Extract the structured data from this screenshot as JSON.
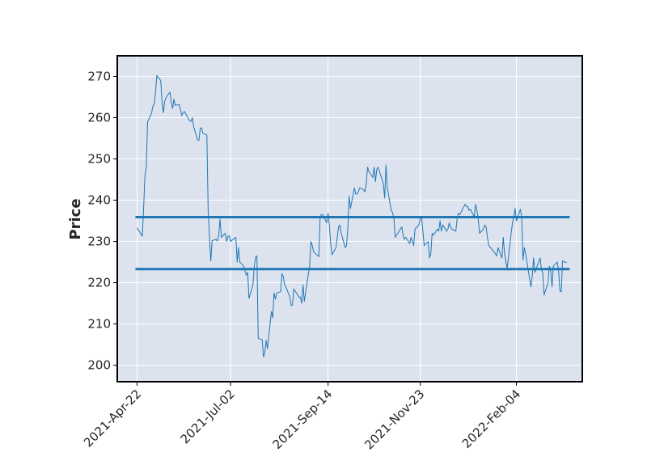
{
  "chart_data": {
    "type": "line",
    "title": "",
    "xlabel": "",
    "ylabel": "Price",
    "ylim": [
      196,
      275
    ],
    "y_ticks": [
      200,
      210,
      220,
      230,
      240,
      250,
      260,
      270
    ],
    "x_tick_labels": [
      "2021-Apr-22",
      "2021-Jul-02",
      "2021-Sep-14",
      "2021-Nov-23",
      "2022-Feb-04"
    ],
    "x_tick_dates": [
      "2021-04-22",
      "2021-07-02",
      "2021-09-14",
      "2021-11-23",
      "2022-02-04"
    ],
    "grid": true,
    "legend": "none",
    "colors": {
      "background": "#dde3ee",
      "grid": "#ffffff",
      "line": "#1f77b4",
      "frame": "#000000"
    },
    "horizontal_lines": [
      235.9,
      223.3
    ],
    "series": [
      {
        "points": [
          [
            "2021-04-22",
            233.3
          ],
          [
            "2021-04-23",
            232.8
          ],
          [
            "2021-04-26",
            231.3
          ],
          [
            "2021-04-27",
            238
          ],
          [
            "2021-04-28",
            246
          ],
          [
            "2021-04-29",
            248
          ],
          [
            "2021-04-30",
            259
          ],
          [
            "2021-05-03",
            261
          ],
          [
            "2021-05-04",
            262.8
          ],
          [
            "2021-05-05",
            263.2
          ],
          [
            "2021-05-06",
            266
          ],
          [
            "2021-05-07",
            270.2
          ],
          [
            "2021-05-10",
            269
          ],
          [
            "2021-05-11",
            263.6
          ],
          [
            "2021-05-12",
            261.2
          ],
          [
            "2021-05-13",
            264
          ],
          [
            "2021-05-14",
            264.9
          ],
          [
            "2021-05-17",
            266.2
          ],
          [
            "2021-05-18",
            263.8
          ],
          [
            "2021-05-19",
            262.2
          ],
          [
            "2021-05-20",
            264.5
          ],
          [
            "2021-05-21",
            263
          ],
          [
            "2021-05-24",
            263.2
          ],
          [
            "2021-05-25",
            262
          ],
          [
            "2021-05-26",
            260.5
          ],
          [
            "2021-05-27",
            261.2
          ],
          [
            "2021-05-28",
            261.5
          ],
          [
            "2021-06-01",
            259.2
          ],
          [
            "2021-06-02",
            259.1
          ],
          [
            "2021-06-03",
            260
          ],
          [
            "2021-06-04",
            257.8
          ],
          [
            "2021-06-07",
            254.6
          ],
          [
            "2021-06-08",
            254.5
          ],
          [
            "2021-06-09",
            257.5
          ],
          [
            "2021-06-10",
            257.5
          ],
          [
            "2021-06-11",
            256.2
          ],
          [
            "2021-06-14",
            255.8
          ],
          [
            "2021-06-15",
            237.5
          ],
          [
            "2021-06-16",
            231
          ],
          [
            "2021-06-17",
            225.3
          ],
          [
            "2021-06-18",
            230.2
          ],
          [
            "2021-06-21",
            230.5
          ],
          [
            "2021-06-22",
            230.1
          ],
          [
            "2021-06-23",
            231.5
          ],
          [
            "2021-06-24",
            235.4
          ],
          [
            "2021-06-25",
            231
          ],
          [
            "2021-06-28",
            232
          ],
          [
            "2021-06-29",
            230
          ],
          [
            "2021-06-30",
            231.2
          ],
          [
            "2021-07-01",
            231.4
          ],
          [
            "2021-07-02",
            230
          ],
          [
            "2021-07-06",
            231
          ],
          [
            "2021-07-07",
            225
          ],
          [
            "2021-07-08",
            228.5
          ],
          [
            "2021-07-09",
            225
          ],
          [
            "2021-07-12",
            224
          ],
          [
            "2021-07-13",
            222.8
          ],
          [
            "2021-07-14",
            221.8
          ],
          [
            "2021-07-15",
            222.5
          ],
          [
            "2021-07-16",
            216.2
          ],
          [
            "2021-07-19",
            219.5
          ],
          [
            "2021-07-20",
            224
          ],
          [
            "2021-07-21",
            226.2
          ],
          [
            "2021-07-22",
            226.5
          ],
          [
            "2021-07-23",
            206.5
          ],
          [
            "2021-07-26",
            206.2
          ],
          [
            "2021-07-27",
            202
          ],
          [
            "2021-07-28",
            203
          ],
          [
            "2021-07-29",
            206
          ],
          [
            "2021-07-30",
            204
          ],
          [
            "2021-08-02",
            213
          ],
          [
            "2021-08-03",
            211.5
          ],
          [
            "2021-08-04",
            217.5
          ],
          [
            "2021-08-05",
            216
          ],
          [
            "2021-08-06",
            217.5
          ],
          [
            "2021-08-09",
            217.8
          ],
          [
            "2021-08-10",
            222.2
          ],
          [
            "2021-08-11",
            221.5
          ],
          [
            "2021-08-12",
            219.5
          ],
          [
            "2021-08-13",
            219
          ],
          [
            "2021-08-16",
            216.5
          ],
          [
            "2021-08-17",
            214.5
          ],
          [
            "2021-08-18",
            214.5
          ],
          [
            "2021-08-19",
            218.5
          ],
          [
            "2021-08-20",
            218
          ],
          [
            "2021-08-23",
            216.5
          ],
          [
            "2021-08-24",
            216.5
          ],
          [
            "2021-08-25",
            215
          ],
          [
            "2021-08-26",
            219.5
          ],
          [
            "2021-08-27",
            215.5
          ],
          [
            "2021-08-30",
            222
          ],
          [
            "2021-08-31",
            224
          ],
          [
            "2021-09-01",
            230
          ],
          [
            "2021-09-02",
            229
          ],
          [
            "2021-09-03",
            227.5
          ],
          [
            "2021-09-07",
            226.3
          ],
          [
            "2021-09-08",
            236
          ],
          [
            "2021-09-09",
            236.5
          ],
          [
            "2021-09-10",
            236.5
          ],
          [
            "2021-09-13",
            234.5
          ],
          [
            "2021-09-14",
            236.8
          ],
          [
            "2021-09-15",
            234
          ],
          [
            "2021-09-16",
            229.5
          ],
          [
            "2021-09-17",
            226.8
          ],
          [
            "2021-09-20",
            228.5
          ],
          [
            "2021-09-21",
            231
          ],
          [
            "2021-09-22",
            233.5
          ],
          [
            "2021-09-23",
            234
          ],
          [
            "2021-09-24",
            232
          ],
          [
            "2021-09-27",
            228.5
          ],
          [
            "2021-09-28",
            229
          ],
          [
            "2021-09-29",
            233
          ],
          [
            "2021-09-30",
            241
          ],
          [
            "2021-10-01",
            238
          ],
          [
            "2021-10-04",
            243
          ],
          [
            "2021-10-05",
            241.5
          ],
          [
            "2021-10-06",
            241.5
          ],
          [
            "2021-10-07",
            242
          ],
          [
            "2021-10-08",
            243
          ],
          [
            "2021-10-11",
            242.5
          ],
          [
            "2021-10-12",
            242
          ],
          [
            "2021-10-13",
            244
          ],
          [
            "2021-10-14",
            248
          ],
          [
            "2021-10-15",
            247
          ],
          [
            "2021-10-18",
            245.5
          ],
          [
            "2021-10-19",
            248
          ],
          [
            "2021-10-20",
            244.5
          ],
          [
            "2021-10-21",
            247.5
          ],
          [
            "2021-10-22",
            248
          ],
          [
            "2021-10-25",
            245
          ],
          [
            "2021-10-26",
            244
          ],
          [
            "2021-10-27",
            240.5
          ],
          [
            "2021-10-28",
            248.5
          ],
          [
            "2021-10-29",
            243
          ],
          [
            "2021-11-01",
            237.5
          ],
          [
            "2021-11-02",
            237
          ],
          [
            "2021-11-03",
            235.5
          ],
          [
            "2021-11-04",
            231
          ],
          [
            "2021-11-05",
            231.5
          ],
          [
            "2021-11-08",
            233
          ],
          [
            "2021-11-09",
            233.5
          ],
          [
            "2021-11-10",
            231.5
          ],
          [
            "2021-11-11",
            230.5
          ],
          [
            "2021-11-12",
            231
          ],
          [
            "2021-11-15",
            229.5
          ],
          [
            "2021-11-16",
            231
          ],
          [
            "2021-11-17",
            230
          ],
          [
            "2021-11-18",
            229
          ],
          [
            "2021-11-19",
            233
          ],
          [
            "2021-11-22",
            234
          ],
          [
            "2021-11-23",
            235.5
          ],
          [
            "2021-11-24",
            236
          ],
          [
            "2021-11-26",
            229
          ],
          [
            "2021-11-29",
            230
          ],
          [
            "2021-11-30",
            226
          ],
          [
            "2021-12-01",
            227
          ],
          [
            "2021-12-02",
            232
          ],
          [
            "2021-12-03",
            231.5
          ],
          [
            "2021-12-06",
            233
          ],
          [
            "2021-12-07",
            232.5
          ],
          [
            "2021-12-08",
            235
          ],
          [
            "2021-12-09",
            232.5
          ],
          [
            "2021-12-10",
            234
          ],
          [
            "2021-12-13",
            232.5
          ],
          [
            "2021-12-14",
            233
          ],
          [
            "2021-12-15",
            234.5
          ],
          [
            "2021-12-16",
            233.5
          ],
          [
            "2021-12-17",
            233
          ],
          [
            "2021-12-20",
            232.5
          ],
          [
            "2021-12-21",
            235.5
          ],
          [
            "2021-12-22",
            236.8
          ],
          [
            "2021-12-23",
            236.5
          ],
          [
            "2021-12-27",
            239
          ],
          [
            "2021-12-28",
            238.5
          ],
          [
            "2021-12-29",
            238.5
          ],
          [
            "2021-12-30",
            237.5
          ],
          [
            "2021-12-31",
            237.8
          ],
          [
            "2022-01-03",
            236
          ],
          [
            "2022-01-04",
            239
          ],
          [
            "2022-01-05",
            237.5
          ],
          [
            "2022-01-06",
            235.5
          ],
          [
            "2022-01-07",
            232
          ],
          [
            "2022-01-10",
            233
          ],
          [
            "2022-01-11",
            234
          ],
          [
            "2022-01-12",
            233.5
          ],
          [
            "2022-01-13",
            231
          ],
          [
            "2022-01-14",
            229
          ],
          [
            "2022-01-18",
            227.5
          ],
          [
            "2022-01-19",
            227
          ],
          [
            "2022-01-20",
            226.5
          ],
          [
            "2022-01-21",
            228.5
          ],
          [
            "2022-01-24",
            226
          ],
          [
            "2022-01-25",
            231
          ],
          [
            "2022-01-26",
            227
          ],
          [
            "2022-01-27",
            225
          ],
          [
            "2022-01-28",
            223.5
          ],
          [
            "2022-01-31",
            232
          ],
          [
            "2022-02-01",
            234.5
          ],
          [
            "2022-02-02",
            236
          ],
          [
            "2022-02-03",
            238
          ],
          [
            "2022-02-04",
            235
          ],
          [
            "2022-02-07",
            237.8
          ],
          [
            "2022-02-08",
            236
          ],
          [
            "2022-02-09",
            225.5
          ],
          [
            "2022-02-10",
            228.5
          ],
          [
            "2022-02-11",
            227
          ],
          [
            "2022-02-14",
            221
          ],
          [
            "2022-02-15",
            219
          ],
          [
            "2022-02-16",
            221.5
          ],
          [
            "2022-02-17",
            226
          ],
          [
            "2022-02-18",
            222.5
          ],
          [
            "2022-02-22",
            226
          ],
          [
            "2022-02-23",
            223
          ],
          [
            "2022-02-24",
            222.5
          ],
          [
            "2022-02-25",
            217
          ],
          [
            "2022-02-28",
            220
          ],
          [
            "2022-03-01",
            224
          ],
          [
            "2022-03-02",
            223
          ],
          [
            "2022-03-03",
            219
          ],
          [
            "2022-03-04",
            224
          ],
          [
            "2022-03-07",
            225
          ],
          [
            "2022-03-08",
            223
          ],
          [
            "2022-03-09",
            218
          ],
          [
            "2022-03-10",
            217.8
          ],
          [
            "2022-03-11",
            225.3
          ],
          [
            "2022-03-14",
            224.8
          ]
        ]
      }
    ]
  }
}
